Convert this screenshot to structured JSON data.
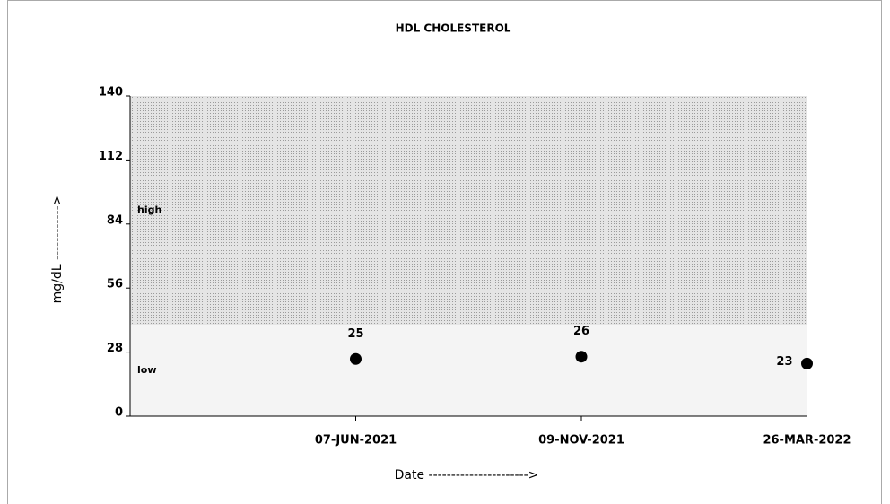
{
  "chart_data": {
    "type": "scatter",
    "title": "HDL CHOLESTEROL",
    "x_label": "Date ---------------------->",
    "y_label": "mg/dL ------------>",
    "categories": [
      null,
      "07-JUN-2021",
      "09-NOV-2021",
      "26-MAR-2022"
    ],
    "values": [
      null,
      25,
      26,
      23
    ],
    "color": "#000000",
    "ylim": [
      0,
      140
    ],
    "yticks": [
      0,
      28,
      56,
      84,
      112,
      140
    ],
    "bands": [
      {
        "label": "low",
        "from": 0,
        "to": 40,
        "color": "#f4f4f4"
      },
      {
        "label": "high",
        "from": 40,
        "to": 140,
        "color": "#d9d9d9"
      }
    ]
  }
}
